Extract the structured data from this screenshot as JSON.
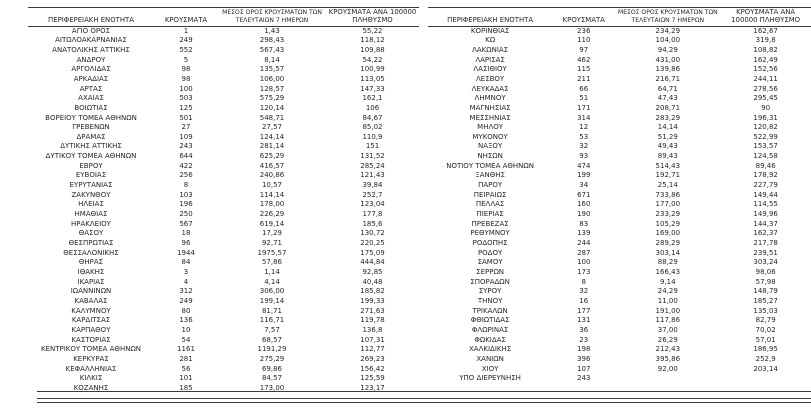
{
  "page": {
    "background": "#ffffff",
    "text_color": "#262626",
    "rule_color": "#3a3a3a"
  },
  "columns": [
    "ΠΕΡΙΦΕΡΕΙΑΚΗ ΕΝΟΤΗΤΑ",
    "ΚΡΟΥΣΜΑΤΑ",
    "ΜΕΣΟΣ ΟΡΟΣ ΚΡΟΥΣΜΑΤΩΝ ΤΩΝ ΤΕΛΕΥΤΑΙΩΝ 7 ΗΜΕΡΩΝ",
    "ΚΡΟΥΣΜΑΤΑ ΑΝΑ 100000 ΠΛΗΘΥΣΜΟ"
  ],
  "tables": [
    {
      "rows": [
        [
          "ΑΓΙΟ ΟΡΟΣ",
          "1",
          "1,43",
          "55,22"
        ],
        [
          "ΑΙΤΩΛΟΑΚΑΡΝΑΝΙΑΣ",
          "249",
          "298,43",
          "118,12"
        ],
        [
          "ΑΝΑΤΟΛΙΚΗΣ ΑΤΤΙΚΗΣ",
          "552",
          "567,43",
          "109,88"
        ],
        [
          "ΑΝΔΡΟΥ",
          "5",
          "8,14",
          "54,22"
        ],
        [
          "ΑΡΓΟΛΙΔΑΣ",
          "98",
          "135,57",
          "100,99"
        ],
        [
          "ΑΡΚΑΔΙΑΣ",
          "98",
          "106,00",
          "113,05"
        ],
        [
          "ΑΡΤΑΣ",
          "100",
          "128,57",
          "147,33"
        ],
        [
          "ΑΧΑΪΑΣ",
          "503",
          "575,29",
          "162,1"
        ],
        [
          "ΒΟΙΩΤΙΑΣ",
          "125",
          "120,14",
          "106"
        ],
        [
          "ΒΟΡΕΙΟΥ ΤΟΜΕΑ ΑΘΗΝΩΝ",
          "501",
          "548,71",
          "84,67"
        ],
        [
          "ΓΡΕΒΕΝΩΝ",
          "27",
          "27,57",
          "85,02"
        ],
        [
          "ΔΡΑΜΑΣ",
          "109",
          "124,14",
          "110,9"
        ],
        [
          "ΔΥΤΙΚΗΣ ΑΤΤΙΚΗΣ",
          "243",
          "281,14",
          "151"
        ],
        [
          "ΔΥΤΙΚΟΥ ΤΟΜΕΑ ΑΘΗΝΩΝ",
          "644",
          "625,29",
          "131,52"
        ],
        [
          "ΕΒΡΟΥ",
          "422",
          "416,57",
          "285,24"
        ],
        [
          "ΕΥΒΟΙΑΣ",
          "256",
          "240,86",
          "121,43"
        ],
        [
          "ΕΥΡΥΤΑΝΙΑΣ",
          "8",
          "10,57",
          "39,84"
        ],
        [
          "ΖΑΚΥΝΘΟΥ",
          "103",
          "114,14",
          "252,7"
        ],
        [
          "ΗΛΕΙΑΣ",
          "196",
          "178,00",
          "123,04"
        ],
        [
          "ΗΜΑΘΙΑΣ",
          "250",
          "226,29",
          "177,8"
        ],
        [
          "ΗΡΑΚΛΕΙΟΥ",
          "567",
          "619,14",
          "185,6"
        ],
        [
          "ΘΑΣΟΥ",
          "18",
          "17,29",
          "130,72"
        ],
        [
          "ΘΕΣΠΡΩΤΙΑΣ",
          "96",
          "92,71",
          "220,25"
        ],
        [
          "ΘΕΣΣΑΛΟΝΙΚΗΣ",
          "1944",
          "1975,57",
          "175,09"
        ],
        [
          "ΘΗΡΑΣ",
          "84",
          "57,86",
          "444,84"
        ],
        [
          "ΙΘΑΚΗΣ",
          "3",
          "1,14",
          "92,85"
        ],
        [
          "ΙΚΑΡΙΑΣ",
          "4",
          "4,14",
          "40,48"
        ],
        [
          "ΙΩΑΝΝΙΝΩΝ",
          "312",
          "306,00",
          "185,82"
        ],
        [
          "ΚΑΒΑΛΑΣ",
          "249",
          "199,14",
          "199,33"
        ],
        [
          "ΚΑΛΥΜΝΟΥ",
          "80",
          "81,71",
          "271,63"
        ],
        [
          "ΚΑΡΔΙΤΣΑΣ",
          "136",
          "116,71",
          "119,78"
        ],
        [
          "ΚΑΡΠΑΘΟΥ",
          "10",
          "7,57",
          "136,8"
        ],
        [
          "ΚΑΣΤΟΡΙΑΣ",
          "54",
          "68,57",
          "107,31"
        ],
        [
          "ΚΕΝΤΡΙΚΟΥ ΤΟΜΕΑ ΑΘΗΝΩΝ",
          "1161",
          "1191,29",
          "112,77"
        ],
        [
          "ΚΕΡΚΥΡΑΣ",
          "281",
          "275,29",
          "269,23"
        ],
        [
          "ΚΕΦΑΛΛΗΝΙΑΣ",
          "56",
          "69,86",
          "156,42"
        ],
        [
          "ΚΙΛΚΙΣ",
          "101",
          "84,57",
          "125,59"
        ],
        [
          "ΚΟΖΑΝΗΣ",
          "185",
          "173,00",
          "123,17"
        ]
      ]
    },
    {
      "rows": [
        [
          "ΚΟΡΙΝΘΙΑΣ",
          "236",
          "234,29",
          "162,67"
        ],
        [
          "ΚΩ",
          "110",
          "104,00",
          "319,8"
        ],
        [
          "ΛΑΚΩΝΙΑΣ",
          "97",
          "94,29",
          "108,82"
        ],
        [
          "ΛΑΡΙΣΑΣ",
          "462",
          "431,00",
          "162,49"
        ],
        [
          "ΛΑΣΙΘΙΟΥ",
          "115",
          "139,86",
          "152,56"
        ],
        [
          "ΛΕΣΒΟΥ",
          "211",
          "216,71",
          "244,11"
        ],
        [
          "ΛΕΥΚΑΔΑΣ",
          "66",
          "64,71",
          "278,56"
        ],
        [
          "ΛΗΜΝΟΥ",
          "51",
          "47,43",
          "295,45"
        ],
        [
          "ΜΑΓΝΗΣΙΑΣ",
          "171",
          "208,71",
          "90"
        ],
        [
          "ΜΕΣΣΗΝΙΑΣ",
          "314",
          "283,29",
          "196,31"
        ],
        [
          "ΜΗΛΟΥ",
          "12",
          "14,14",
          "120,82"
        ],
        [
          "ΜΥΚΟΝΟΥ",
          "53",
          "51,29",
          "522,99"
        ],
        [
          "ΝΑΞΟΥ",
          "32",
          "49,43",
          "153,57"
        ],
        [
          "ΝΗΣΩΝ",
          "93",
          "89,43",
          "124,58"
        ],
        [
          "ΝΟΤΙΟΥ ΤΟΜΕΑ ΑΘΗΝΩΝ",
          "474",
          "514,43",
          "89,46"
        ],
        [
          "ΞΑΝΘΗΣ",
          "199",
          "192,71",
          "178,92"
        ],
        [
          "ΠΑΡΟΥ",
          "34",
          "25,14",
          "227,79"
        ],
        [
          "ΠΕΙΡΑΙΩΣ",
          "671",
          "733,86",
          "149,44"
        ],
        [
          "ΠΕΛΛΑΣ",
          "160",
          "177,00",
          "114,55"
        ],
        [
          "ΠΙΕΡΙΑΣ",
          "190",
          "233,29",
          "149,96"
        ],
        [
          "ΠΡΕΒΕΖΑΣ",
          "83",
          "105,29",
          "144,37"
        ],
        [
          "ΡΕΘΥΜΝΟΥ",
          "139",
          "169,00",
          "162,37"
        ],
        [
          "ΡΟΔΟΠΗΣ",
          "244",
          "289,29",
          "217,78"
        ],
        [
          "ΡΟΔΟΥ",
          "287",
          "303,14",
          "239,51"
        ],
        [
          "ΣΑΜΟΥ",
          "100",
          "88,29",
          "303,24"
        ],
        [
          "ΣΕΡΡΩΝ",
          "173",
          "166,43",
          "98,06"
        ],
        [
          "ΣΠΟΡΑΔΩΝ",
          "8",
          "9,14",
          "57,98"
        ],
        [
          "ΣΥΡΟΥ",
          "32",
          "24,29",
          "148,79"
        ],
        [
          "ΤΗΝΟΥ",
          "16",
          "11,00",
          "185,27"
        ],
        [
          "ΤΡΙΚΑΛΩΝ",
          "177",
          "191,00",
          "135,03"
        ],
        [
          "ΦΘΙΩΤΙΔΑΣ",
          "131",
          "117,86",
          "82,79"
        ],
        [
          "ΦΛΩΡΙΝΑΣ",
          "36",
          "37,00",
          "70,02"
        ],
        [
          "ΦΩΚΙΔΑΣ",
          "23",
          "26,29",
          "57,01"
        ],
        [
          "ΧΑΛΚΙΔΙΚΗΣ",
          "198",
          "212,43",
          "186,95"
        ],
        [
          "ΧΑΝΙΩΝ",
          "396",
          "395,86",
          "252,9"
        ],
        [
          "ΧΙΟΥ",
          "107",
          "92,00",
          "203,14"
        ],
        [
          "ΥΠΟ ΔΙΕΡΕΥΝΗΣΗ",
          "243",
          "",
          ""
        ]
      ]
    }
  ]
}
